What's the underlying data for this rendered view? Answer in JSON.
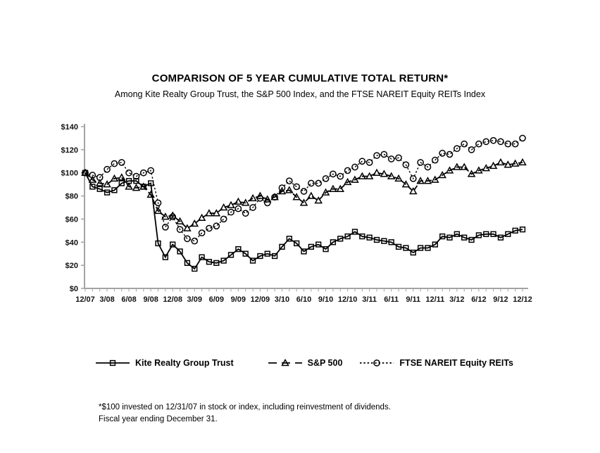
{
  "footnote": {
    "line1": "*$100 invested on 12/31/07 in stock or index, including reinvestment of dividends.",
    "line2": "Fiscal year ending December 31."
  },
  "chart_data": {
    "type": "line",
    "title": "COMPARISON OF 5 YEAR CUMULATIVE TOTAL RETURN*",
    "subtitle": "Among Kite Realty Group Trust, the S&P 500 Index, and the FTSE NAREIT Equity REITs Index",
    "x_frequency": "monthly",
    "x_start": "12/07",
    "x_end": "12/12",
    "x_tick_labels": [
      "12/07",
      "3/08",
      "6/08",
      "9/08",
      "12/08",
      "3/09",
      "6/09",
      "9/09",
      "12/09",
      "3/10",
      "6/10",
      "9/10",
      "12/10",
      "3/11",
      "6/11",
      "9/11",
      "12/11",
      "3/12",
      "6/12",
      "9/12",
      "12/12"
    ],
    "y_tick_labels": [
      "$0",
      "$20",
      "$40",
      "$60",
      "$80",
      "$100",
      "$120",
      "$140"
    ],
    "ylim": [
      0,
      140
    ],
    "y_tick_step": 20,
    "grid": false,
    "legend_position": "bottom",
    "axis_color": "#a3a3a3",
    "series": [
      {
        "name": "Kite Realty Group Trust",
        "marker": "square",
        "line": "solid",
        "color": "#000000",
        "values": [
          100,
          88,
          86,
          83,
          85,
          91,
          93,
          93,
          88,
          91,
          39,
          27,
          38,
          32,
          22,
          17,
          27,
          23,
          22,
          24,
          29,
          34,
          30,
          24,
          28,
          30,
          28,
          36,
          43,
          39,
          32,
          36,
          38,
          34,
          40,
          43,
          45,
          49,
          45,
          44,
          42,
          41,
          40,
          36,
          35,
          31,
          35,
          35,
          38,
          45,
          44,
          47,
          44,
          42,
          46,
          47,
          47,
          44,
          47,
          50,
          51
        ]
      },
      {
        "name": "S&P 500",
        "marker": "triangle",
        "line": "dashed",
        "color": "#000000",
        "values": [
          100,
          94,
          91,
          90,
          95,
          96,
          88,
          87,
          88,
          81,
          67,
          62,
          63,
          58,
          52,
          56,
          61,
          65,
          65,
          70,
          72,
          75,
          74,
          78,
          80,
          77,
          79,
          84,
          85,
          79,
          74,
          80,
          76,
          83,
          86,
          86,
          92,
          94,
          97,
          97,
          100,
          99,
          97,
          95,
          90,
          84,
          93,
          93,
          94,
          98,
          102,
          105,
          105,
          99,
          102,
          104,
          106,
          109,
          107,
          108,
          109
        ]
      },
      {
        "name": "FTSE NAREIT Equity REITs",
        "marker": "circle",
        "line": "dotted",
        "color": "#000000",
        "values": [
          100,
          98,
          96,
          103,
          108,
          109,
          100,
          97,
          100,
          102,
          74,
          53,
          62,
          51,
          43,
          41,
          48,
          52,
          54,
          60,
          66,
          69,
          65,
          70,
          78,
          74,
          79,
          87,
          93,
          88,
          84,
          91,
          91,
          95,
          99,
          97,
          102,
          105,
          110,
          109,
          115,
          116,
          112,
          113,
          107,
          95,
          109,
          105,
          111,
          117,
          116,
          121,
          125,
          120,
          125,
          127,
          128,
          127,
          125,
          125,
          130
        ]
      }
    ]
  }
}
